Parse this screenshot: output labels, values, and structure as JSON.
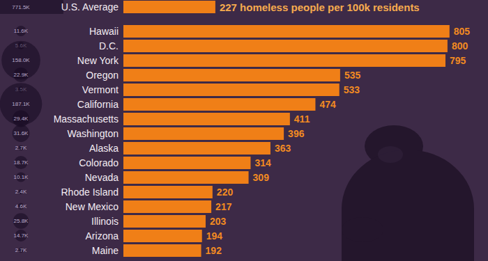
{
  "chart_data": {
    "type": "bar",
    "orientation": "horizontal",
    "data_labels": true,
    "tick_labels": "y",
    "grid": false,
    "color": "#f07f17",
    "xlim": [
      0,
      900
    ],
    "categories": [
      "U.S. Average",
      "Hawaii",
      "D.C.",
      "New York",
      "Oregon",
      "Vermont",
      "California",
      "Massachusetts",
      "Washington",
      "Alaska",
      "Colorado",
      "Nevada",
      "Rhode Island",
      "New Mexico",
      "Illinois",
      "Arizona",
      "Maine"
    ],
    "values": [
      227,
      805,
      800,
      795,
      535,
      533,
      474,
      411,
      396,
      363,
      314,
      309,
      220,
      217,
      203,
      194,
      192
    ],
    "value_labels": [
      "227 homeless people per 100k residents",
      "805",
      "800",
      "795",
      "535",
      "533",
      "474",
      "411",
      "396",
      "363",
      "314",
      "309",
      "220",
      "217",
      "203",
      "194",
      "192"
    ],
    "homeless_totals": [
      771500,
      11600,
      5600,
      158000,
      22900,
      3500,
      187100,
      29400,
      31600,
      2700,
      18700,
      10100,
      2400,
      4600,
      25800,
      14700,
      2700
    ],
    "homeless_total_labels": [
      "771.5K",
      "11.6K",
      "5.6K",
      "158.0K",
      "22.9K",
      "3.5K",
      "187.1K",
      "29.4K",
      "31.6K",
      "2.7K",
      "18.7K",
      "10.1K",
      "2.4K",
      "4.6K",
      "25.8K",
      "14.7K",
      "2.7K"
    ]
  }
}
